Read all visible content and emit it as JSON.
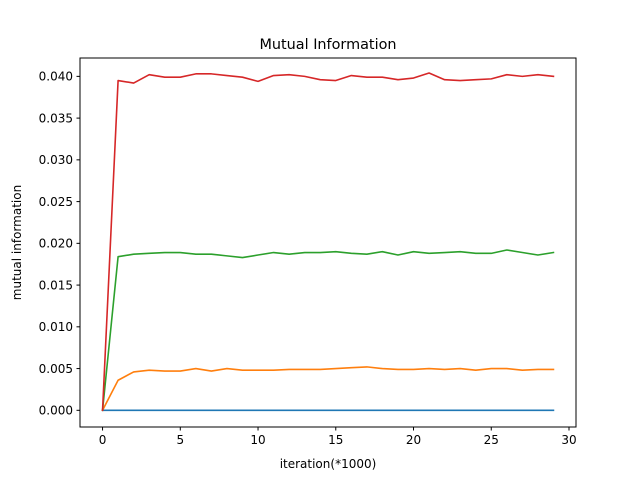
{
  "chart_data": {
    "type": "line",
    "title": "Mutual Information",
    "xlabel": "iteration(*1000)",
    "ylabel": "mutual information",
    "xlim": [
      -1.45,
      30.45
    ],
    "ylim": [
      -0.002,
      0.0422
    ],
    "xticks": [
      0,
      5,
      10,
      15,
      20,
      25,
      30
    ],
    "xtick_labels": [
      "0",
      "5",
      "10",
      "15",
      "20",
      "25",
      "30"
    ],
    "yticks": [
      0.0,
      0.005,
      0.01,
      0.015,
      0.02,
      0.025,
      0.03,
      0.035,
      0.04
    ],
    "ytick_labels": [
      "0.000",
      "0.005",
      "0.010",
      "0.015",
      "0.020",
      "0.025",
      "0.030",
      "0.035",
      "0.040"
    ],
    "grid": false,
    "x": [
      0,
      1,
      2,
      3,
      4,
      5,
      6,
      7,
      8,
      9,
      10,
      11,
      12,
      13,
      14,
      15,
      16,
      17,
      18,
      19,
      20,
      21,
      22,
      23,
      24,
      25,
      26,
      27,
      28,
      29
    ],
    "series": [
      {
        "color": "#1f77b4",
        "values": [
          0.0,
          0.0,
          0.0,
          0.0,
          0.0,
          0.0,
          0.0,
          0.0,
          0.0,
          0.0,
          0.0,
          0.0,
          0.0,
          0.0,
          0.0,
          0.0,
          0.0,
          0.0,
          0.0,
          0.0,
          0.0,
          0.0,
          0.0,
          0.0,
          0.0,
          0.0,
          0.0,
          0.0,
          0.0,
          0.0
        ]
      },
      {
        "color": "#ff7f0e",
        "values": [
          0.0,
          0.0036,
          0.0046,
          0.0048,
          0.0047,
          0.0047,
          0.005,
          0.0047,
          0.005,
          0.0048,
          0.0048,
          0.0048,
          0.0049,
          0.0049,
          0.0049,
          0.005,
          0.0051,
          0.0052,
          0.005,
          0.0049,
          0.0049,
          0.005,
          0.0049,
          0.005,
          0.0048,
          0.005,
          0.005,
          0.0048,
          0.0049,
          0.0049
        ]
      },
      {
        "color": "#2ca02c",
        "values": [
          0.0,
          0.0184,
          0.0187,
          0.0188,
          0.0189,
          0.0189,
          0.0187,
          0.0187,
          0.0185,
          0.0183,
          0.0186,
          0.0189,
          0.0187,
          0.0189,
          0.0189,
          0.019,
          0.0188,
          0.0187,
          0.019,
          0.0186,
          0.019,
          0.0188,
          0.0189,
          0.019,
          0.0188,
          0.0188,
          0.0192,
          0.0189,
          0.0186,
          0.0189
        ]
      },
      {
        "color": "#d62728",
        "values": [
          0.0,
          0.0395,
          0.0392,
          0.0402,
          0.0399,
          0.0399,
          0.0403,
          0.0403,
          0.0401,
          0.0399,
          0.0394,
          0.0401,
          0.0402,
          0.04,
          0.0396,
          0.0395,
          0.0401,
          0.0399,
          0.0399,
          0.0396,
          0.0398,
          0.0404,
          0.0396,
          0.0395,
          0.0396,
          0.0397,
          0.0402,
          0.04,
          0.0402,
          0.04
        ]
      }
    ]
  }
}
